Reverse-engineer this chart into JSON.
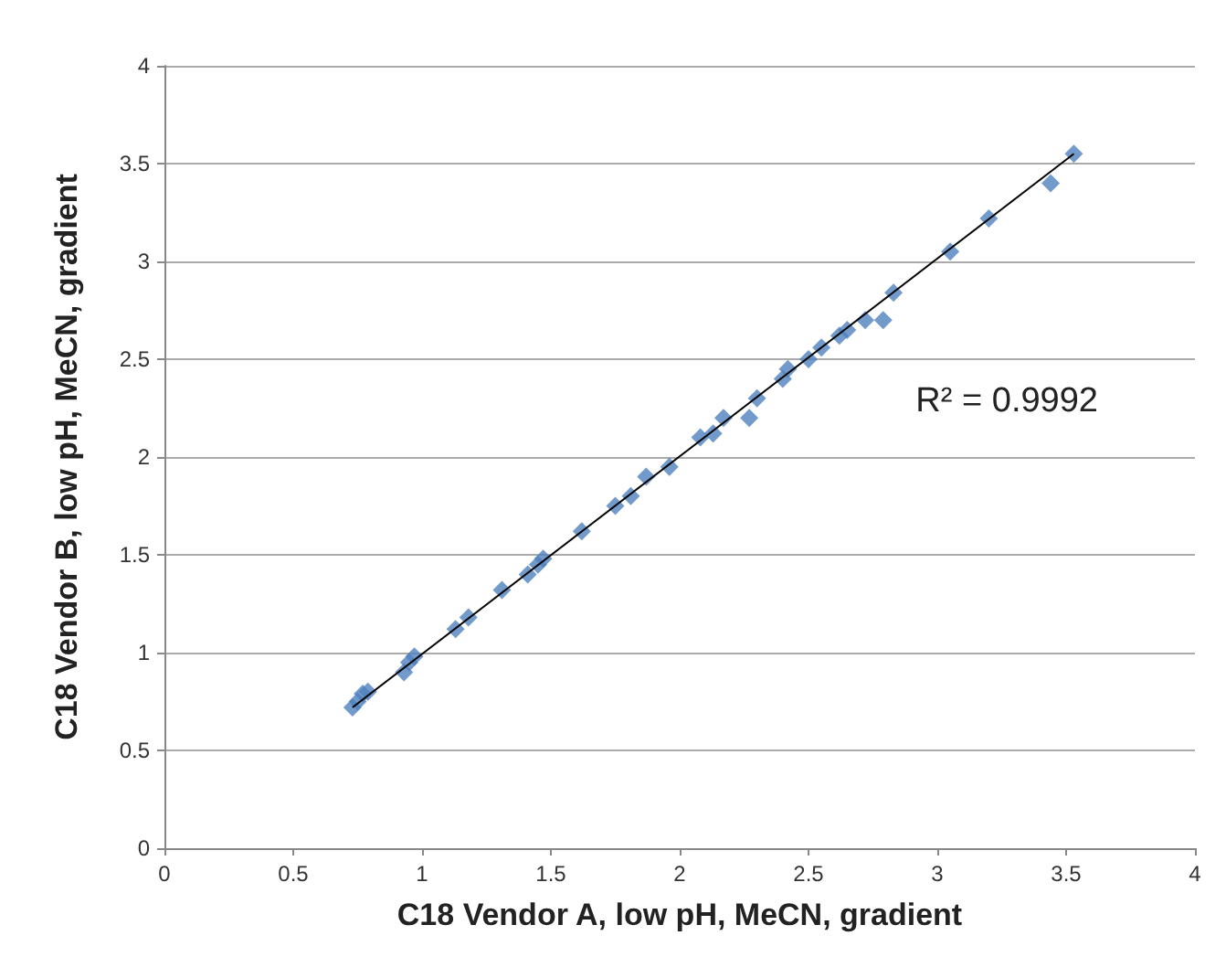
{
  "chart_data": {
    "type": "scatter",
    "xlabel": "C18 Vendor A, low pH, MeCN, gradient",
    "ylabel": "C18 Vendor B, low pH, MeCN, gradient",
    "series": [
      {
        "color": "#4f81bd",
        "marker": "diamond",
        "x": [
          0.73,
          0.75,
          0.77,
          0.79,
          0.93,
          0.95,
          0.97,
          1.13,
          1.18,
          1.31,
          1.41,
          1.45,
          1.47,
          1.62,
          1.75,
          1.81,
          1.87,
          1.96,
          2.08,
          2.13,
          2.17,
          2.27,
          2.3,
          2.4,
          2.42,
          2.5,
          2.55,
          2.62,
          2.65,
          2.72,
          2.79,
          2.83,
          3.05,
          3.2,
          3.44,
          3.53
        ],
        "values": [
          0.72,
          0.75,
          0.79,
          0.8,
          0.9,
          0.95,
          0.98,
          1.12,
          1.18,
          1.32,
          1.4,
          1.45,
          1.48,
          1.62,
          1.75,
          1.8,
          1.9,
          1.95,
          2.1,
          2.12,
          2.2,
          2.2,
          2.3,
          2.4,
          2.45,
          2.5,
          2.56,
          2.62,
          2.65,
          2.7,
          2.7,
          2.84,
          3.05,
          3.22,
          3.4,
          3.55
        ]
      },
      {
        "type": "line",
        "color": "#000000",
        "marker": "none",
        "x": [
          0.73,
          3.53
        ],
        "values": [
          0.72,
          3.55
        ]
      }
    ],
    "annotations": [
      "R² = 0.9992"
    ],
    "xlim": [
      0,
      4
    ],
    "xticks": [
      0,
      0.5,
      1,
      1.5,
      2,
      2.5,
      3,
      3.5,
      4
    ],
    "ylim": [
      0,
      4
    ],
    "yticks": [
      0,
      0.5,
      1,
      1.5,
      2,
      2.5,
      3,
      3.5,
      4
    ],
    "grid": "y"
  }
}
